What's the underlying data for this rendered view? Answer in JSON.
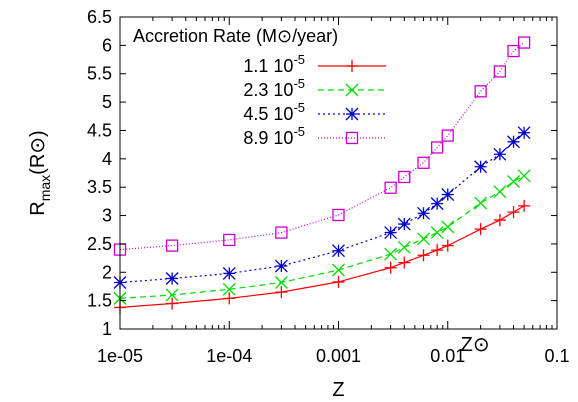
{
  "chart_data": {
    "type": "line",
    "xlabel": "Z",
    "ylabel_main": "R",
    "ylabel_sub": "max",
    "ylabel_unit": "(R⊙)",
    "x_scale": "log",
    "xlim": [
      1e-05,
      0.1
    ],
    "ylim": [
      1,
      6.5
    ],
    "x_ticks": [
      {
        "value": 1e-05,
        "label": "1e-05"
      },
      {
        "value": 0.0001,
        "label": "1e-04"
      },
      {
        "value": 0.001,
        "label": "0.001"
      },
      {
        "value": 0.01,
        "label": "0.01"
      },
      {
        "value": 0.1,
        "label": "0.1"
      }
    ],
    "y_ticks": [
      {
        "value": 1,
        "label": "1"
      },
      {
        "value": 1.5,
        "label": "1.5"
      },
      {
        "value": 2,
        "label": "2"
      },
      {
        "value": 2.5,
        "label": "2.5"
      },
      {
        "value": 3,
        "label": "3"
      },
      {
        "value": 3.5,
        "label": "3.5"
      },
      {
        "value": 4,
        "label": "4"
      },
      {
        "value": 4.5,
        "label": "4.5"
      },
      {
        "value": 5,
        "label": "5"
      },
      {
        "value": 5.5,
        "label": "5.5"
      },
      {
        "value": 6,
        "label": "6"
      },
      {
        "value": 6.5,
        "label": "6.5"
      }
    ],
    "legend": {
      "title": "Accretion Rate (M⊙/year)",
      "position": "top-left"
    },
    "annotation": "Z⊙",
    "annotation_x": 0.02,
    "series": [
      {
        "name": "1.1 10^-5",
        "name_base": "1.1 10",
        "name_exp": "-5",
        "color": "#ff0000",
        "marker": "plus",
        "dash": "solid",
        "x": [
          1e-05,
          3e-05,
          0.0001,
          0.0003,
          0.001,
          0.003,
          0.004,
          0.006,
          0.008,
          0.01,
          0.02,
          0.03,
          0.04,
          0.05
        ],
        "y": [
          1.38,
          1.45,
          1.54,
          1.65,
          1.83,
          2.08,
          2.17,
          2.3,
          2.39,
          2.47,
          2.76,
          2.92,
          3.06,
          3.17
        ]
      },
      {
        "name": "2.3 10^-5",
        "name_base": "2.3 10",
        "name_exp": "-5",
        "color": "#00dd00",
        "marker": "x",
        "dash": "dashed",
        "x": [
          1e-05,
          3e-05,
          0.0001,
          0.0003,
          0.001,
          0.003,
          0.004,
          0.006,
          0.008,
          0.01,
          0.02,
          0.03,
          0.04,
          0.05
        ],
        "y": [
          1.54,
          1.6,
          1.7,
          1.82,
          2.04,
          2.32,
          2.44,
          2.59,
          2.7,
          2.8,
          3.22,
          3.42,
          3.6,
          3.7
        ]
      },
      {
        "name": "4.5 10^-5",
        "name_base": "4.5 10",
        "name_exp": "-5",
        "color": "#0000cc",
        "marker": "star",
        "dash": "dotted",
        "x": [
          1e-05,
          3e-05,
          0.0001,
          0.0003,
          0.001,
          0.003,
          0.004,
          0.006,
          0.008,
          0.01,
          0.02,
          0.03,
          0.04,
          0.05
        ],
        "y": [
          1.82,
          1.89,
          1.98,
          2.11,
          2.38,
          2.7,
          2.85,
          3.04,
          3.21,
          3.37,
          3.86,
          4.08,
          4.3,
          4.46
        ]
      },
      {
        "name": "8.9 10^-5",
        "name_base": "8.9 10",
        "name_exp": "-5",
        "color": "#cc00cc",
        "marker": "square",
        "dash": "dotted-fine",
        "x": [
          1e-05,
          3e-05,
          0.0001,
          0.0003,
          0.001,
          0.003,
          0.004,
          0.006,
          0.008,
          0.01,
          0.02,
          0.03,
          0.04,
          0.05
        ],
        "y": [
          2.4,
          2.47,
          2.57,
          2.7,
          3.01,
          3.49,
          3.68,
          3.93,
          4.2,
          4.41,
          5.19,
          5.54,
          5.9,
          6.05
        ]
      }
    ]
  }
}
